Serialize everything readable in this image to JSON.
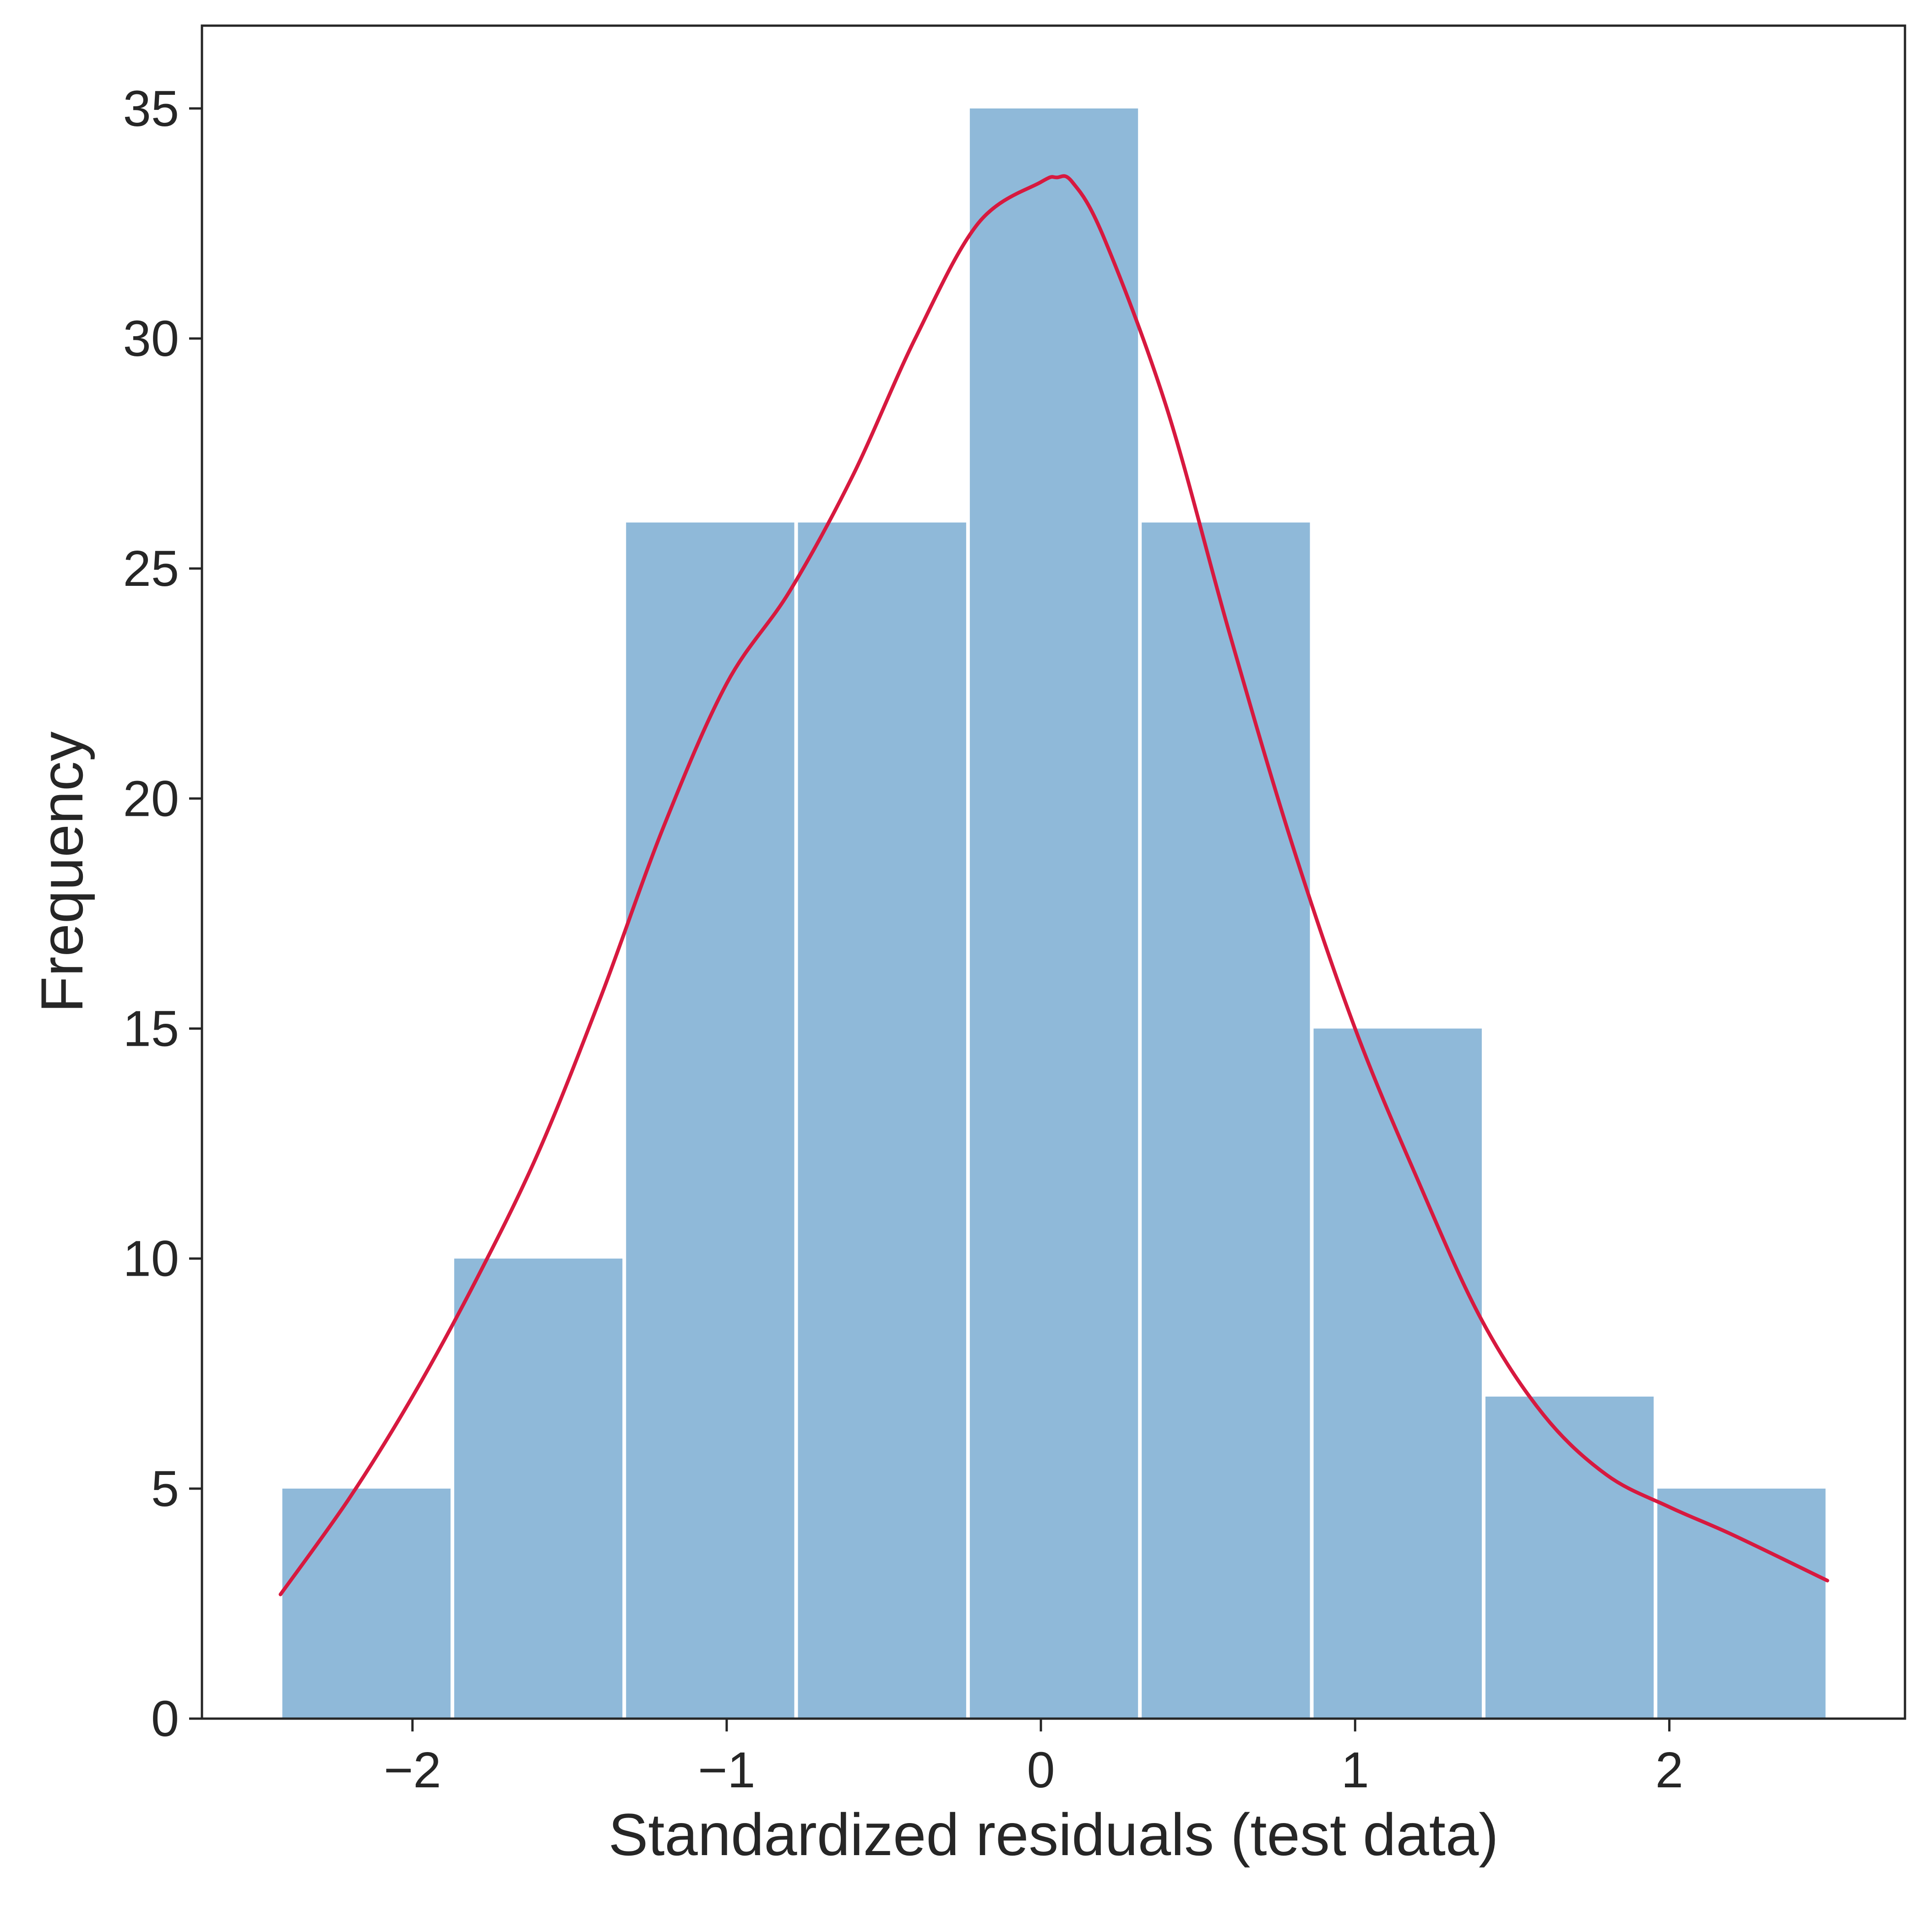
{
  "chart_data": {
    "type": "bar",
    "title": "",
    "xlabel": "Standardized residuals (test data)",
    "ylabel": "Frequency",
    "bin_edges": [
      -2.42,
      -1.873,
      -1.326,
      -0.779,
      -0.232,
      0.315,
      0.862,
      1.409,
      1.956,
      2.503
    ],
    "values": [
      5,
      10,
      26,
      26,
      35,
      26,
      15,
      7,
      5
    ],
    "xlim": [
      -2.67,
      2.75
    ],
    "ylim": [
      0,
      36.8
    ],
    "xticks": [
      -2,
      -1,
      0,
      1,
      2
    ],
    "xtick_labels": [
      "−2",
      "−1",
      "0",
      "1",
      "2"
    ],
    "yticks": [
      0,
      5,
      10,
      15,
      20,
      25,
      30,
      35
    ],
    "ytick_labels": [
      "0",
      "5",
      "10",
      "15",
      "20",
      "25",
      "30",
      "35"
    ],
    "grid": false,
    "bar_color": "#8fb9d9",
    "kde_color": "#d7193f",
    "kde_curve": {
      "x": [
        -2.42,
        -2.2,
        -2.0,
        -1.8,
        -1.6,
        -1.4,
        -1.2,
        -1.0,
        -0.8,
        -0.6,
        -0.4,
        -0.2,
        0.0,
        0.05,
        0.1,
        0.2,
        0.4,
        0.6,
        0.8,
        1.0,
        1.2,
        1.4,
        1.6,
        1.8,
        2.0,
        2.2,
        2.503
      ],
      "y": [
        2.7,
        4.8,
        7.0,
        9.5,
        12.3,
        15.7,
        19.4,
        22.5,
        24.5,
        27.0,
        30.0,
        32.5,
        33.4,
        33.5,
        33.4,
        32.2,
        28.5,
        23.6,
        19.0,
        15.0,
        11.7,
        8.7,
        6.6,
        5.3,
        4.6,
        4.0,
        3.0
      ]
    }
  }
}
